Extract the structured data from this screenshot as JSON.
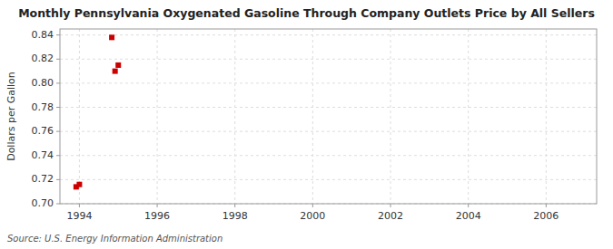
{
  "chart_data": {
    "type": "scatter",
    "title": "Monthly Pennsylvania Oxygenated Gasoline Through Company Outlets Price by All Sellers",
    "ylabel": "Dollars per Gallon",
    "annotations": [
      "Source: U.S. Energy Information Administration"
    ],
    "x": [
      1993.917,
      1994.0,
      1994.833,
      1994.917,
      1995.0
    ],
    "values": [
      0.714,
      0.716,
      0.838,
      0.81,
      0.815
    ],
    "color": "#cc0000",
    "marker": "square",
    "xlim": [
      1993.5,
      2007.3
    ],
    "ylim": [
      0.7,
      0.845
    ],
    "xticks": [
      1994,
      1996,
      1998,
      2000,
      2002,
      2004,
      2006
    ],
    "yticks": [
      {
        "value": 0.7,
        "label": "0.70"
      },
      0.72,
      0.74,
      0.76,
      0.78,
      {
        "value": 0.8,
        "label": "0.80"
      },
      0.82,
      0.84
    ],
    "grid": true
  }
}
